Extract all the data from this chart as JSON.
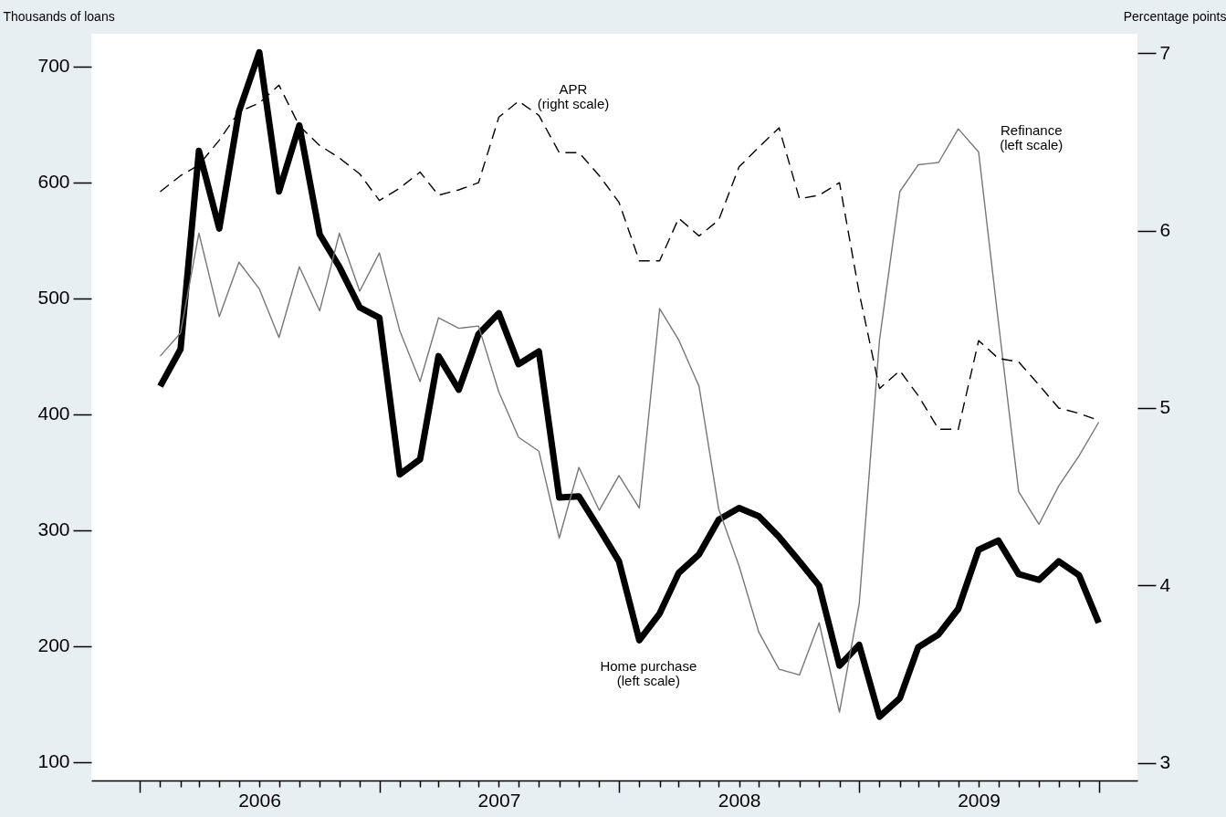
{
  "chart_data": {
    "type": "line",
    "x": [
      "2006-01",
      "2006-02",
      "2006-03",
      "2006-04",
      "2006-05",
      "2006-06",
      "2006-07",
      "2006-08",
      "2006-09",
      "2006-10",
      "2006-11",
      "2006-12",
      "2007-01",
      "2007-02",
      "2007-03",
      "2007-04",
      "2007-05",
      "2007-06",
      "2007-07",
      "2007-08",
      "2007-09",
      "2007-10",
      "2007-11",
      "2007-12",
      "2008-01",
      "2008-02",
      "2008-03",
      "2008-04",
      "2008-05",
      "2008-06",
      "2008-07",
      "2008-08",
      "2008-09",
      "2008-10",
      "2008-11",
      "2008-12",
      "2009-01",
      "2009-02",
      "2009-03",
      "2009-04",
      "2009-05",
      "2009-06",
      "2009-07",
      "2009-08",
      "2009-09",
      "2009-10",
      "2009-11",
      "2009-12"
    ],
    "series": [
      {
        "name": "Home purchase\n(left scale)",
        "color": "#000000",
        "values": [
          424,
          456,
          627,
          560,
          661,
          712,
          592,
          649,
          555,
          527,
          492,
          483,
          348,
          361,
          450,
          421,
          469,
          487,
          443,
          454,
          328,
          329,
          301,
          273,
          205,
          228,
          263,
          279,
          309,
          319,
          312,
          294,
          273,
          252,
          183,
          201,
          139,
          155,
          199,
          210,
          232,
          283,
          291,
          262,
          257,
          273,
          261,
          220
        ]
      },
      {
        "name": "Refinance\n(left scale)",
        "color": "#777777",
        "values": [
          450,
          470,
          556,
          484,
          531,
          508,
          466,
          527,
          489,
          556,
          506,
          539,
          472,
          428,
          483,
          474,
          476,
          419,
          380,
          368,
          293,
          354,
          317,
          347,
          319,
          491,
          464,
          424,
          318,
          269,
          212,
          180,
          175,
          220,
          143,
          236,
          464,
          592,
          615,
          617,
          646,
          626,
          480,
          333,
          305,
          338,
          364,
          393
        ]
      },
      {
        "name": "APR\n(right scale)",
        "color": "#000000",
        "axis": "y2",
        "line_style": "dashed",
        "values": [
          6.22,
          6.31,
          6.37,
          6.51,
          6.67,
          6.72,
          6.82,
          6.59,
          6.48,
          6.41,
          6.32,
          6.17,
          6.24,
          6.33,
          6.2,
          6.23,
          6.27,
          6.64,
          6.73,
          6.65,
          6.44,
          6.44,
          6.31,
          6.16,
          5.83,
          5.83,
          6.07,
          5.97,
          6.06,
          6.36,
          6.47,
          6.58,
          6.18,
          6.2,
          6.27,
          5.65,
          5.11,
          5.21,
          5.07,
          4.88,
          4.88,
          5.38,
          5.28,
          5.26,
          5.13,
          5.0,
          4.97,
          4.93
        ]
      }
    ],
    "ylabel": "Thousands of loans",
    "y2label": "Percentage points",
    "ylim": [
      84,
      728
    ],
    "yticks": [
      100,
      200,
      300,
      400,
      500,
      600,
      700
    ],
    "y2lim": [
      2.9,
      7.11
    ],
    "y2ticks": [
      3,
      4,
      5,
      6,
      7
    ],
    "xlim": [
      "2005-09-18",
      "2010-01-29"
    ],
    "xticks": [
      {
        "value": "2005-12",
        "label": null
      },
      {
        "value": "2006-01",
        "label": null
      },
      {
        "value": "2006-02",
        "label": null
      },
      {
        "value": "2006-03",
        "label": null
      },
      {
        "value": "2006-04",
        "label": null
      },
      {
        "value": "2006-05",
        "label": null
      },
      {
        "value": "2006-06",
        "label": "2006"
      },
      {
        "value": "2006-07",
        "label": null
      },
      {
        "value": "2006-08",
        "label": null
      },
      {
        "value": "2006-09",
        "label": null
      },
      {
        "value": "2006-10",
        "label": null
      },
      {
        "value": "2006-11",
        "label": null
      },
      {
        "value": "2006-12",
        "label": null
      },
      {
        "value": "2007-01",
        "label": null
      },
      {
        "value": "2007-02",
        "label": null
      },
      {
        "value": "2007-03",
        "label": null
      },
      {
        "value": "2007-04",
        "label": null
      },
      {
        "value": "2007-05",
        "label": null
      },
      {
        "value": "2007-06",
        "label": "2007"
      },
      {
        "value": "2007-07",
        "label": null
      },
      {
        "value": "2007-08",
        "label": null
      },
      {
        "value": "2007-09",
        "label": null
      },
      {
        "value": "2007-10",
        "label": null
      },
      {
        "value": "2007-11",
        "label": null
      },
      {
        "value": "2007-12",
        "label": null
      },
      {
        "value": "2008-01",
        "label": null
      },
      {
        "value": "2008-02",
        "label": null
      },
      {
        "value": "2008-03",
        "label": null
      },
      {
        "value": "2008-04",
        "label": null
      },
      {
        "value": "2008-05",
        "label": null
      },
      {
        "value": "2008-06",
        "label": "2008"
      },
      {
        "value": "2008-07",
        "label": null
      },
      {
        "value": "2008-08",
        "label": null
      },
      {
        "value": "2008-09",
        "label": null
      },
      {
        "value": "2008-10",
        "label": null
      },
      {
        "value": "2008-11",
        "label": null
      },
      {
        "value": "2008-12",
        "label": null
      },
      {
        "value": "2009-01",
        "label": null
      },
      {
        "value": "2009-02",
        "label": null
      },
      {
        "value": "2009-03",
        "label": null
      },
      {
        "value": "2009-04",
        "label": null
      },
      {
        "value": "2009-05",
        "label": null
      },
      {
        "value": "2009-06",
        "label": "2009"
      },
      {
        "value": "2009-07",
        "label": null
      },
      {
        "value": "2009-08",
        "label": null
      },
      {
        "value": "2009-09",
        "label": null
      },
      {
        "value": "2009-10",
        "label": null
      },
      {
        "value": "2009-11",
        "label": null
      },
      {
        "value": "2009-12",
        "label": null
      }
    ],
    "grid": false,
    "legend": false,
    "marker": "none"
  }
}
